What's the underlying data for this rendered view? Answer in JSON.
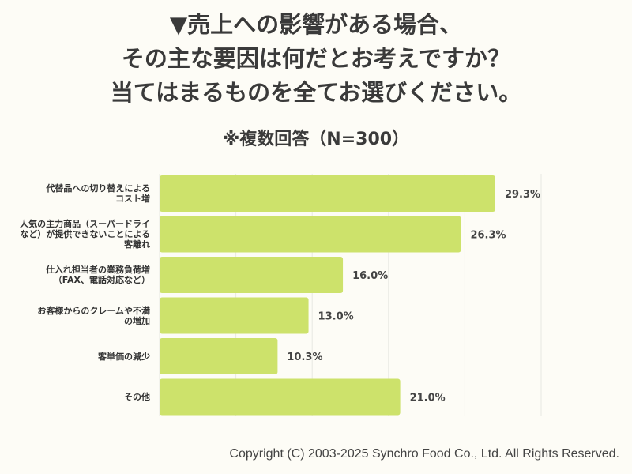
{
  "title_lines": [
    "▼売上への影響がある場合、",
    "その主な要因は何だとお考えですか？",
    "当てはまるものを全てお選びください。"
  ],
  "subtitle": "※複数回答（N=300）",
  "copyright": "Copyright (C) 2003-2025  Synchro Food Co., Ltd. All Rights Reserved.",
  "chart_data": {
    "type": "bar",
    "orientation": "horizontal",
    "categories": [
      [
        "代替品への切り替えによる",
        "コスト増"
      ],
      [
        "人気の主力商品（スーパードライ",
        "など）が提供できないことによる",
        "客離れ"
      ],
      [
        "仕入れ担当者の業務負荷増",
        "（FAX、電話対応など）"
      ],
      [
        "お客様からのクレームや不満",
        "の増加"
      ],
      [
        "客単価の減少"
      ],
      [
        "その他"
      ]
    ],
    "values": [
      29.3,
      26.3,
      16.0,
      13.0,
      10.3,
      21.0
    ],
    "value_labels": [
      "29.3%",
      "26.3%",
      "16.0%",
      "13.0%",
      "10.3%",
      "21.0%"
    ],
    "xlim": [
      0,
      33.3
    ],
    "grid": true,
    "bar_color": "#cde26b"
  }
}
